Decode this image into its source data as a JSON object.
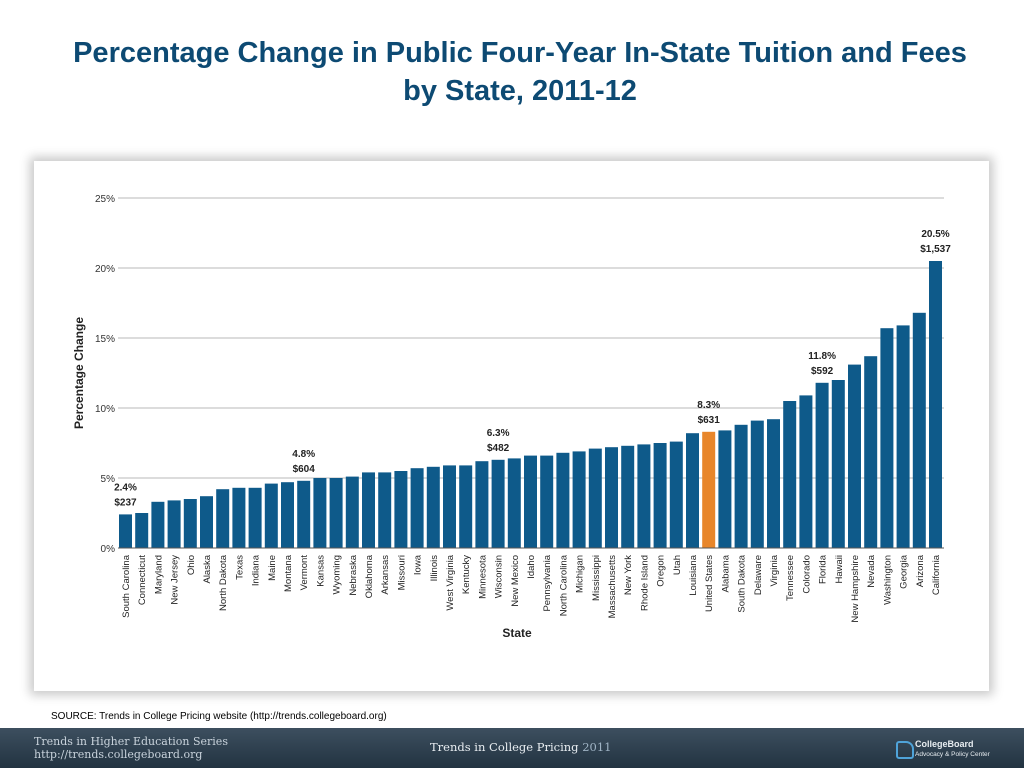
{
  "title": {
    "line1": "Percentage Change in Public Four-Year In-State Tuition and Fees",
    "line2": "by State,  2011-12"
  },
  "source": "SOURCE: Trends in College Pricing website (http://trends.collegeboard.org)",
  "footer": {
    "series_line1": "Trends in Higher Education Series",
    "series_line2": "http://trends.collegeboard.org",
    "center_prefix": "Trends in College Pricing",
    "center_year": "2011",
    "logo_name": "CollegeBoard",
    "logo_sub": "Advocacy & Policy Center"
  },
  "colors": {
    "bar": "#0e5a8a",
    "highlight": "#e8862a",
    "grid": "#b8b8b8",
    "title": "#0d4a73"
  },
  "chart_data": {
    "type": "bar",
    "xlabel": "State",
    "ylabel": "Percentage Change",
    "ylim": [
      0,
      25
    ],
    "yticks": [
      0,
      5,
      10,
      15,
      20,
      25
    ],
    "ytick_labels": [
      "0%",
      "5%",
      "10%",
      "15%",
      "20%",
      "25%"
    ],
    "grid": true,
    "highlight_category": "United States",
    "categories": [
      "South Carolina",
      "Connecticut",
      "Maryland",
      "New Jersey",
      "Ohio",
      "Alaska",
      "North Dakota",
      "Texas",
      "Indiana",
      "Maine",
      "Montana",
      "Vermont",
      "Kansas",
      "Wyoming",
      "Nebraska",
      "Oklahoma",
      "Arkansas",
      "Missouri",
      "Iowa",
      "Illinois",
      "West Virginia",
      "Kentucky",
      "Minnesota",
      "Wisconsin",
      "New Mexico",
      "Idaho",
      "Pennsylvania",
      "North Carolina",
      "Michigan",
      "Mississippi",
      "Massachusetts",
      "New York",
      "Rhode Island",
      "Oregon",
      "Utah",
      "Louisiana",
      "United States",
      "Alabama",
      "South Dakota",
      "Delaware",
      "Virginia",
      "Tennessee",
      "Colorado",
      "Florida",
      "Hawaii",
      "New Hampshire",
      "Nevada",
      "Washington",
      "Georgia",
      "Arizona",
      "California"
    ],
    "values": [
      2.4,
      2.5,
      3.3,
      3.4,
      3.5,
      3.7,
      4.2,
      4.3,
      4.3,
      4.6,
      4.7,
      4.8,
      5.0,
      5.0,
      5.1,
      5.4,
      5.4,
      5.5,
      5.7,
      5.8,
      5.9,
      5.9,
      6.2,
      6.3,
      6.4,
      6.6,
      6.6,
      6.8,
      6.9,
      7.1,
      7.2,
      7.3,
      7.4,
      7.5,
      7.6,
      8.2,
      8.3,
      8.4,
      8.8,
      9.1,
      9.2,
      10.5,
      10.9,
      11.8,
      12.0,
      13.1,
      13.7,
      15.7,
      15.9,
      16.8,
      20.5
    ],
    "annotations": [
      {
        "category": "South Carolina",
        "percent": "2.4%",
        "dollars": "$237"
      },
      {
        "category": "Vermont",
        "percent": "4.8%",
        "dollars": "$604"
      },
      {
        "category": "Wisconsin",
        "percent": "6.3%",
        "dollars": "$482"
      },
      {
        "category": "United States",
        "percent": "8.3%",
        "dollars": "$631"
      },
      {
        "category": "Florida",
        "percent": "11.8%",
        "dollars": "$592"
      },
      {
        "category": "California",
        "percent": "20.5%",
        "dollars": "$1,537"
      }
    ]
  }
}
